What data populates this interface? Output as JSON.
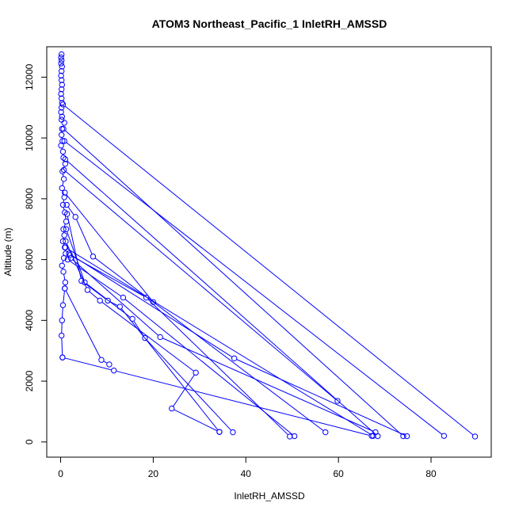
{
  "chart_data": {
    "type": "scatter",
    "title": "ATOM3 Northeast_Pacific_1 InletRH_AMSSD",
    "xlabel": "InletRH_AMSSD",
    "ylabel": "Altitude (m)",
    "xlim": [
      -3,
      93
    ],
    "ylim": [
      -500,
      13000
    ],
    "xticks": [
      0,
      20,
      40,
      60,
      80
    ],
    "yticks": [
      0,
      2000,
      4000,
      6000,
      8000,
      10000,
      12000
    ],
    "grid": false,
    "color": "#0000ff",
    "series": [
      {
        "mode": "line+points",
        "points": [
          [
            0.2,
            12750
          ],
          [
            0.1,
            12650
          ],
          [
            0.2,
            12550
          ],
          [
            0.1,
            12450
          ],
          [
            0.3,
            12350
          ],
          [
            0.2,
            12200
          ],
          [
            0.1,
            12050
          ],
          [
            0.2,
            11900
          ],
          [
            0.3,
            11750
          ],
          [
            0.2,
            11600
          ],
          [
            0.1,
            11450
          ],
          [
            0.2,
            11300
          ],
          [
            0.3,
            11150
          ],
          [
            0.2,
            11000
          ],
          [
            0.1,
            10850
          ],
          [
            0.3,
            10700
          ],
          [
            0.2,
            10600
          ],
          [
            0.8,
            10500
          ],
          [
            0.3,
            10300
          ],
          [
            0.2,
            10100
          ],
          [
            0.4,
            9900
          ],
          [
            0.1,
            9750
          ],
          [
            0.5,
            9550
          ],
          [
            0.6,
            9350
          ],
          [
            1.0,
            9150
          ],
          [
            0.4,
            8900
          ],
          [
            0.7,
            8650
          ],
          [
            0.3,
            8350
          ],
          [
            0.8,
            8050
          ],
          [
            0.5,
            7800
          ],
          [
            0.9,
            7550
          ],
          [
            1.2,
            7250
          ],
          [
            0.6,
            7000
          ],
          [
            0.8,
            6800
          ],
          [
            0.5,
            6600
          ],
          [
            0.9,
            6400
          ],
          [
            1.1,
            6200
          ],
          [
            0.7,
            6050
          ],
          [
            0.3,
            5800
          ],
          [
            0.6,
            5600
          ],
          [
            1.0,
            5250
          ],
          [
            0.9,
            5050
          ],
          [
            0.5,
            4500
          ],
          [
            0.3,
            4000
          ],
          [
            0.2,
            3500
          ],
          [
            0.4,
            2780
          ]
        ]
      },
      {
        "mode": "line+points",
        "points": [
          [
            0.5,
            11100
          ],
          [
            89.5,
            180
          ]
        ]
      },
      {
        "mode": "line+points",
        "points": [
          [
            0.6,
            10300
          ],
          [
            74.0,
            190
          ]
        ]
      },
      {
        "mode": "line+points",
        "points": [
          [
            0.8,
            9900
          ],
          [
            82.8,
            200
          ]
        ]
      },
      {
        "mode": "line+points",
        "points": [
          [
            1.0,
            9300
          ],
          [
            68.5,
            190
          ]
        ]
      },
      {
        "mode": "line+points",
        "points": [
          [
            0.7,
            8950
          ],
          [
            59.8,
            1350
          ]
        ]
      },
      {
        "mode": "line+points",
        "points": [
          [
            0.9,
            8200
          ],
          [
            20.0,
            4600
          ]
        ]
      },
      {
        "mode": "line+points",
        "points": [
          [
            1.3,
            7800
          ],
          [
            3.2,
            7400
          ],
          [
            7.0,
            6100
          ],
          [
            57.2,
            320
          ]
        ]
      },
      {
        "mode": "line+points",
        "points": [
          [
            2.0,
            6150
          ],
          [
            18.5,
            4750
          ],
          [
            49.5,
            180
          ]
        ]
      },
      {
        "mode": "line+points",
        "points": [
          [
            1.5,
            6000
          ],
          [
            13.5,
            4750
          ],
          [
            50.5,
            190
          ]
        ]
      },
      {
        "mode": "line+points",
        "points": [
          [
            1.8,
            6200
          ],
          [
            37.5,
            2750
          ],
          [
            74.8,
            190
          ]
        ]
      },
      {
        "mode": "line+points",
        "points": [
          [
            2.2,
            6050
          ],
          [
            21.5,
            3450
          ],
          [
            68.0,
            320
          ]
        ]
      },
      {
        "mode": "line+points",
        "points": [
          [
            1.0,
            6400
          ],
          [
            67.5,
            200
          ]
        ]
      },
      {
        "mode": "line+points",
        "points": [
          [
            1.2,
            7000
          ],
          [
            5.2,
            5250
          ],
          [
            15.5,
            4050
          ],
          [
            18.2,
            3420
          ],
          [
            37.2,
            320
          ]
        ]
      },
      {
        "mode": "line+points",
        "points": [
          [
            1.4,
            7500
          ],
          [
            4.5,
            5300
          ],
          [
            10.2,
            4650
          ],
          [
            12.8,
            4450
          ],
          [
            34.3,
            330
          ]
        ]
      },
      {
        "mode": "line+points",
        "points": [
          [
            1.1,
            6600
          ],
          [
            5.8,
            5000
          ],
          [
            8.5,
            4650
          ],
          [
            29.2,
            2280
          ],
          [
            24.0,
            1100
          ],
          [
            34.3,
            330
          ]
        ]
      },
      {
        "mode": "line+points",
        "points": [
          [
            0.9,
            5050
          ],
          [
            8.8,
            2700
          ],
          [
            10.5,
            2550
          ]
        ]
      },
      {
        "mode": "line+points",
        "points": [
          [
            0.4,
            2780
          ],
          [
            11.5,
            2350
          ],
          [
            67.2,
            200
          ]
        ]
      }
    ]
  }
}
